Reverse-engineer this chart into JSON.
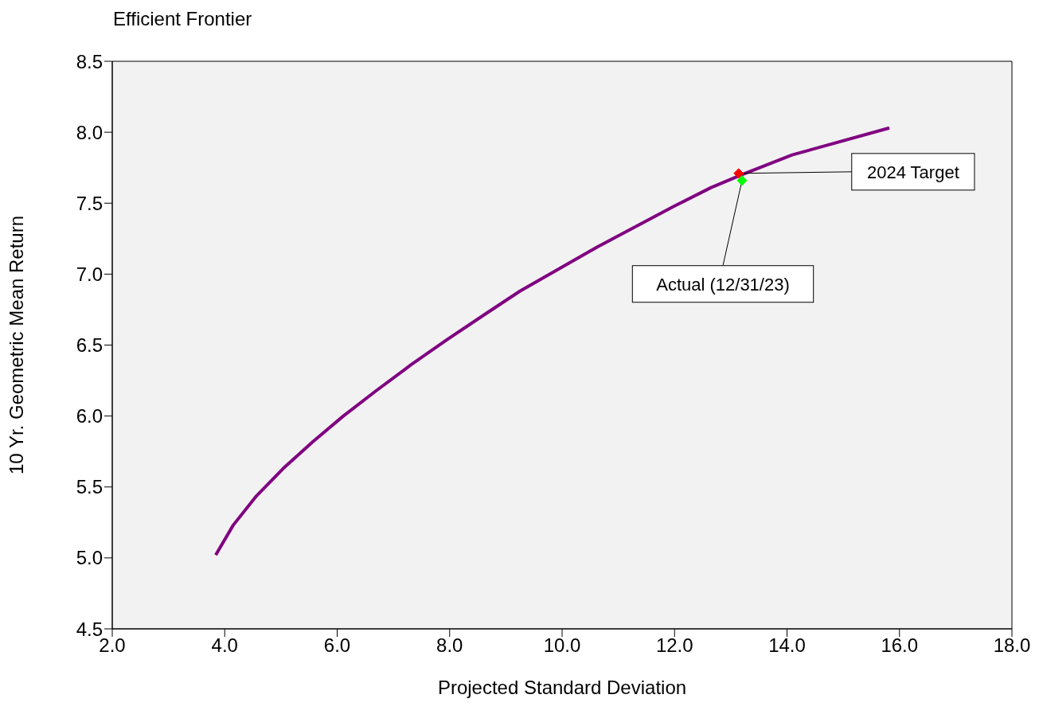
{
  "chart_data": {
    "type": "line",
    "title": "Efficient Frontier",
    "xlabel": "Projected Standard Deviation",
    "ylabel": "10 Yr. Geometric Mean Return",
    "xlim": [
      2,
      18
    ],
    "ylim": [
      4.5,
      8.5
    ],
    "xticks": [
      {
        "value": 2,
        "label": "2.0"
      },
      {
        "value": 4,
        "label": "4.0"
      },
      {
        "value": 6,
        "label": "6.0"
      },
      {
        "value": 8,
        "label": "8.0"
      },
      {
        "value": 10,
        "label": "10.0"
      },
      {
        "value": 12,
        "label": "12.0"
      },
      {
        "value": 14,
        "label": "14.0"
      },
      {
        "value": 16,
        "label": "16.0"
      },
      {
        "value": 18,
        "label": "18.0"
      }
    ],
    "yticks": [
      4.5,
      {
        "value": 5,
        "label": "5.0"
      },
      5.5,
      {
        "value": 6,
        "label": "6.0"
      },
      6.5,
      {
        "value": 7,
        "label": "7.0"
      },
      7.5,
      {
        "value": 8,
        "label": "8.0"
      },
      8.5
    ],
    "series": [
      {
        "color": "#800080",
        "x": [
          3.84,
          4.15,
          4.55,
          5.04,
          5.57,
          6.11,
          6.7,
          7.31,
          7.96,
          8.64,
          9.25,
          10.62,
          12.0,
          12.65,
          13.19,
          14.09,
          15.82
        ],
        "values": [
          5.02,
          5.23,
          5.43,
          5.63,
          5.82,
          6.0,
          6.18,
          6.36,
          6.54,
          6.72,
          6.88,
          7.19,
          7.48,
          7.61,
          7.7,
          7.84,
          8.03
        ]
      },
      {
        "type": "scatter",
        "name": "2024 Target",
        "color": "#ff0000",
        "marker": "diamond",
        "x": [
          13.14
        ],
        "values": [
          7.71
        ]
      },
      {
        "type": "scatter",
        "name": "Actual (12/31/23)",
        "color": "#00ff00",
        "marker": "diamond",
        "x": [
          13.2
        ],
        "values": [
          7.66
        ]
      }
    ]
  }
}
